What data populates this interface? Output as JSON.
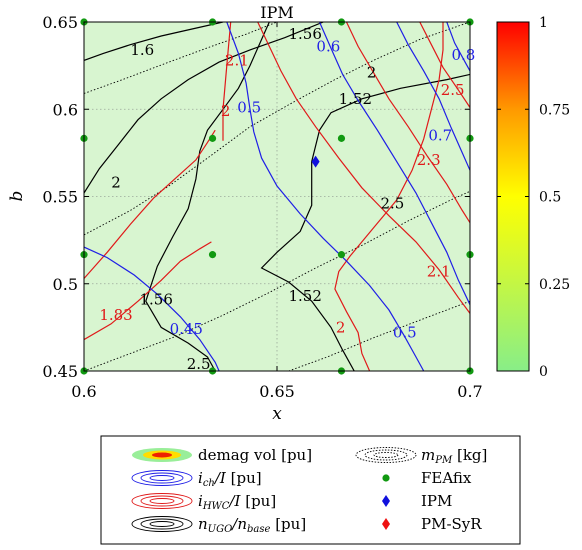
{
  "chart_data": {
    "type": "contour",
    "title": "IPM",
    "xlabel": "x",
    "ylabel": "b",
    "xlim": [
      0.6,
      0.7
    ],
    "ylim": [
      0.45,
      0.65
    ],
    "xticks": [
      "0.6",
      "0.65",
      "0.7"
    ],
    "yticks": [
      "0.45",
      "0.5",
      "0.55",
      "0.6",
      "0.65"
    ],
    "grid": true,
    "background_color": "#d8f5d0",
    "colorbar": {
      "min": 0,
      "max": 1,
      "ticks": [
        "0",
        "0.25",
        "0.5",
        "0.75",
        "1"
      ],
      "colors": [
        "#88ee88",
        "#ffff00",
        "#ff9900",
        "#ff0000"
      ]
    },
    "feafix_points": [
      {
        "x": 0.6,
        "y": 0.45
      },
      {
        "x": 0.6333,
        "y": 0.45
      },
      {
        "x": 0.6667,
        "y": 0.45
      },
      {
        "x": 0.7,
        "y": 0.45
      },
      {
        "x": 0.6,
        "y": 0.5167
      },
      {
        "x": 0.6333,
        "y": 0.5167
      },
      {
        "x": 0.6667,
        "y": 0.5167
      },
      {
        "x": 0.7,
        "y": 0.5167
      },
      {
        "x": 0.6,
        "y": 0.5833
      },
      {
        "x": 0.6333,
        "y": 0.5833
      },
      {
        "x": 0.6667,
        "y": 0.5833
      },
      {
        "x": 0.7,
        "y": 0.5833
      },
      {
        "x": 0.6,
        "y": 0.65
      },
      {
        "x": 0.6333,
        "y": 0.65
      },
      {
        "x": 0.6667,
        "y": 0.65
      },
      {
        "x": 0.7,
        "y": 0.65
      }
    ],
    "ipm_point": {
      "x": 0.66,
      "y": 0.57
    },
    "contours": {
      "n_ugo": [
        {
          "level": "1.6",
          "points": [
            [
              0.6,
              0.628
            ],
            [
              0.605,
              0.632
            ],
            [
              0.612,
              0.637
            ],
            [
              0.62,
              0.642
            ],
            [
              0.628,
              0.646
            ],
            [
              0.636,
              0.65
            ]
          ]
        },
        {
          "level": "1.56",
          "points": [
            [
              0.6,
              0.552
            ],
            [
              0.604,
              0.566
            ],
            [
              0.609,
              0.58
            ],
            [
              0.614,
              0.594
            ],
            [
              0.62,
              0.606
            ],
            [
              0.627,
              0.617
            ],
            [
              0.635,
              0.627
            ],
            [
              0.643,
              0.634
            ],
            [
              0.652,
              0.641
            ],
            [
              0.662,
              0.65
            ]
          ]
        },
        {
          "level": "1.56",
          "points": [
            [
              0.634,
              0.45
            ],
            [
              0.632,
              0.458
            ],
            [
              0.627,
              0.466
            ],
            [
              0.62,
              0.475
            ],
            [
              0.616,
              0.49
            ],
            [
              0.619,
              0.51
            ],
            [
              0.623,
              0.527
            ],
            [
              0.627,
              0.543
            ],
            [
              0.629,
              0.56
            ],
            [
              0.63,
              0.576
            ],
            [
              0.632,
              0.588
            ],
            [
              0.636,
              0.6
            ],
            [
              0.64,
              0.612
            ],
            [
              0.643,
              0.625
            ],
            [
              0.646,
              0.64
            ],
            [
              0.648,
              0.65
            ]
          ]
        },
        {
          "level": "1.52",
          "points": [
            [
              0.67,
              0.45
            ],
            [
              0.667,
              0.462
            ],
            [
              0.664,
              0.475
            ],
            [
              0.659,
              0.49
            ],
            [
              0.653,
              0.501
            ],
            [
              0.646,
              0.509
            ],
            [
              0.65,
              0.518
            ],
            [
              0.656,
              0.53
            ],
            [
              0.659,
              0.545
            ],
            [
              0.659,
              0.57
            ],
            [
              0.661,
              0.588
            ],
            [
              0.664,
              0.598
            ],
            [
              0.672,
              0.606
            ],
            [
              0.682,
              0.612
            ],
            [
              0.694,
              0.617
            ],
            [
              0.7,
              0.62
            ]
          ]
        }
      ],
      "i_ch": [
        {
          "level": "0.45",
          "points": [
            [
              0.6,
              0.521
            ],
            [
              0.606,
              0.515
            ],
            [
              0.613,
              0.505
            ],
            [
              0.619,
              0.494
            ],
            [
              0.625,
              0.481
            ],
            [
              0.63,
              0.468
            ],
            [
              0.634,
              0.455
            ],
            [
              0.635,
              0.45
            ]
          ]
        },
        {
          "level": "0.5",
          "points": [
            [
              0.637,
              0.65
            ],
            [
              0.64,
              0.632
            ],
            [
              0.642,
              0.615
            ],
            [
              0.643,
              0.6
            ],
            [
              0.644,
              0.587
            ],
            [
              0.646,
              0.572
            ],
            [
              0.65,
              0.556
            ],
            [
              0.656,
              0.54
            ],
            [
              0.662,
              0.526
            ],
            [
              0.668,
              0.513
            ],
            [
              0.674,
              0.499
            ],
            [
              0.679,
              0.485
            ],
            [
              0.683,
              0.47
            ],
            [
              0.686,
              0.458
            ],
            [
              0.688,
              0.45
            ]
          ]
        },
        {
          "level": "0.6",
          "points": [
            [
              0.661,
              0.65
            ],
            [
              0.664,
              0.635
            ],
            [
              0.667,
              0.62
            ],
            [
              0.671,
              0.605
            ],
            [
              0.676,
              0.588
            ],
            [
              0.681,
              0.57
            ],
            [
              0.686,
              0.552
            ],
            [
              0.69,
              0.535
            ],
            [
              0.694,
              0.518
            ],
            [
              0.697,
              0.502
            ],
            [
              0.7,
              0.488
            ]
          ]
        },
        {
          "level": "0.7",
          "points": [
            [
              0.681,
              0.65
            ],
            [
              0.684,
              0.637
            ],
            [
              0.688,
              0.622
            ],
            [
              0.692,
              0.606
            ],
            [
              0.695,
              0.59
            ],
            [
              0.698,
              0.575
            ],
            [
              0.7,
              0.565
            ]
          ]
        },
        {
          "level": "0.8",
          "points": [
            [
              0.694,
              0.65
            ],
            [
              0.696,
              0.638
            ],
            [
              0.699,
              0.626
            ],
            [
              0.7,
              0.622
            ]
          ]
        }
      ],
      "i_hwc": [
        {
          "level": "1.83",
          "points": [
            [
              0.6,
              0.468
            ],
            [
              0.607,
              0.477
            ],
            [
              0.614,
              0.49
            ],
            [
              0.62,
              0.502
            ],
            [
              0.625,
              0.513
            ],
            [
              0.63,
              0.52
            ],
            [
              0.633,
              0.524
            ]
          ]
        },
        {
          "level": "2",
          "points": [
            [
              0.6,
              0.503
            ],
            [
              0.606,
              0.518
            ],
            [
              0.612,
              0.534
            ],
            [
              0.618,
              0.549
            ],
            [
              0.624,
              0.561
            ],
            [
              0.629,
              0.571
            ],
            [
              0.632,
              0.581
            ],
            [
              0.634,
              0.588
            ]
          ]
        },
        {
          "level": "2",
          "points": [
            [
              0.674,
              0.45
            ],
            [
              0.672,
              0.46
            ],
            [
              0.671,
              0.472
            ],
            [
              0.668,
              0.484
            ],
            [
              0.665,
              0.497
            ],
            [
              0.666,
              0.507
            ],
            [
              0.669,
              0.516
            ],
            [
              0.675,
              0.532
            ],
            [
              0.681,
              0.548
            ],
            [
              0.685,
              0.565
            ],
            [
              0.688,
              0.583
            ],
            [
              0.69,
              0.6
            ],
            [
              0.692,
              0.617
            ],
            [
              0.693,
              0.634
            ],
            [
              0.693,
              0.65
            ]
          ]
        },
        {
          "level": "2.1",
          "points": [
            [
              0.638,
              0.65
            ],
            [
              0.637,
              0.625
            ],
            [
              0.636,
              0.6
            ],
            [
              0.636,
              0.582
            ]
          ]
        },
        {
          "level": "2.1",
          "points": [
            [
              0.645,
              0.65
            ],
            [
              0.648,
              0.636
            ],
            [
              0.651,
              0.622
            ],
            [
              0.655,
              0.606
            ],
            [
              0.66,
              0.59
            ],
            [
              0.666,
              0.572
            ],
            [
              0.672,
              0.555
            ],
            [
              0.679,
              0.539
            ],
            [
              0.686,
              0.524
            ],
            [
              0.692,
              0.508
            ],
            [
              0.697,
              0.492
            ],
            [
              0.7,
              0.483
            ]
          ]
        },
        {
          "level": "2.3",
          "points": [
            [
              0.668,
              0.65
            ],
            [
              0.671,
              0.636
            ],
            [
              0.675,
              0.621
            ],
            [
              0.679,
              0.606
            ],
            [
              0.684,
              0.59
            ],
            [
              0.689,
              0.573
            ],
            [
              0.694,
              0.557
            ],
            [
              0.698,
              0.542
            ],
            [
              0.7,
              0.535
            ]
          ]
        },
        {
          "level": "2.5",
          "points": [
            [
              0.687,
              0.65
            ],
            [
              0.69,
              0.637
            ],
            [
              0.693,
              0.624
            ],
            [
              0.697,
              0.611
            ],
            [
              0.7,
              0.601
            ]
          ]
        }
      ],
      "m_pm": [
        {
          "level": "2",
          "points": [
            [
              0.6,
              0.528
            ],
            [
              0.612,
              0.542
            ],
            [
              0.622,
              0.556
            ],
            [
              0.632,
              0.572
            ],
            [
              0.643,
              0.59
            ],
            [
              0.655,
              0.605
            ],
            [
              0.665,
              0.617
            ],
            [
              0.675,
              0.628
            ],
            [
              0.687,
              0.64
            ],
            [
              0.7,
              0.65
            ]
          ]
        },
        {
          "level": "2",
          "points": [
            [
              0.6,
              0.609
            ],
            [
              0.61,
              0.617
            ],
            [
              0.622,
              0.627
            ],
            [
              0.633,
              0.636
            ],
            [
              0.642,
              0.643
            ],
            [
              0.65,
              0.65
            ]
          ]
        },
        {
          "level": "2.5",
          "points": [
            [
              0.6,
              0.45
            ],
            [
              0.612,
              0.46
            ],
            [
              0.624,
              0.47
            ],
            [
              0.636,
              0.482
            ],
            [
              0.648,
              0.495
            ],
            [
              0.66,
              0.509
            ],
            [
              0.672,
              0.522
            ],
            [
              0.684,
              0.536
            ],
            [
              0.695,
              0.548
            ],
            [
              0.7,
              0.553
            ]
          ]
        },
        {
          "level": "2.5",
          "points": [
            [
              0.653,
              0.45
            ],
            [
              0.663,
              0.458
            ],
            [
              0.675,
              0.469
            ],
            [
              0.688,
              0.48
            ],
            [
              0.7,
              0.49
            ]
          ]
        }
      ]
    },
    "contour_labels": [
      {
        "text": "1.6",
        "x": 0.6151,
        "y": 0.634,
        "color": "black"
      },
      {
        "text": "1.56",
        "x": 0.6573,
        "y": 0.643,
        "color": "black"
      },
      {
        "text": "1.52",
        "x": 0.6703,
        "y": 0.606,
        "color": "black"
      },
      {
        "text": "1.56",
        "x": 0.6187,
        "y": 0.491,
        "color": "black"
      },
      {
        "text": "1.52",
        "x": 0.6573,
        "y": 0.493,
        "color": "black"
      },
      {
        "text": "2",
        "x": 0.6745,
        "y": 0.621,
        "color": "black"
      },
      {
        "text": "2",
        "x": 0.6083,
        "y": 0.558,
        "color": "black"
      },
      {
        "text": "2.5",
        "x": 0.6799,
        "y": 0.546,
        "color": "black"
      },
      {
        "text": "2.5",
        "x": 0.6297,
        "y": 0.454,
        "color": "black"
      },
      {
        "text": "0.5",
        "x": 0.6428,
        "y": 0.601,
        "color": "blue"
      },
      {
        "text": "0.6",
        "x": 0.6633,
        "y": 0.636,
        "color": "blue"
      },
      {
        "text": "0.7",
        "x": 0.6923,
        "y": 0.585,
        "color": "blue"
      },
      {
        "text": "0.8",
        "x": 0.6983,
        "y": 0.631,
        "color": "blue"
      },
      {
        "text": "0.45",
        "x": 0.6265,
        "y": 0.474,
        "color": "blue"
      },
      {
        "text": "0.5",
        "x": 0.6831,
        "y": 0.472,
        "color": "blue"
      },
      {
        "text": "2",
        "x": 0.6367,
        "y": 0.599,
        "color": "red"
      },
      {
        "text": "2.1",
        "x": 0.6396,
        "y": 0.628,
        "color": "red"
      },
      {
        "text": "2.3",
        "x": 0.6893,
        "y": 0.571,
        "color": "red"
      },
      {
        "text": "2.5",
        "x": 0.6955,
        "y": 0.611,
        "color": "red"
      },
      {
        "text": "1.83",
        "x": 0.6083,
        "y": 0.482,
        "color": "red"
      },
      {
        "text": "2.1",
        "x": 0.6919,
        "y": 0.507,
        "color": "red"
      },
      {
        "text": "2",
        "x": 0.6665,
        "y": 0.475,
        "color": "red"
      }
    ],
    "legend": {
      "placement": "bottom",
      "entries": [
        {
          "id": "demag",
          "html": "demag vol [pu]"
        },
        {
          "id": "mpm",
          "html": "<tspan font-style='italic'>m</tspan><tspan font-size='10' dy='3' font-style='italic'>PM</tspan><tspan dy='-3'> [kg]</tspan>"
        },
        {
          "id": "ich",
          "html": "<tspan font-style='italic'>i</tspan><tspan font-size='10' dy='3' font-style='italic'>ch</tspan><tspan dy='-3' font-style='italic'>/I</tspan><tspan> [pu]</tspan>"
        },
        {
          "id": "feafix",
          "html": "FEAfix"
        },
        {
          "id": "ihwc",
          "html": "<tspan font-style='italic'>i</tspan><tspan font-size='10' dy='3' font-style='italic'>HWC</tspan><tspan dy='-3' font-style='italic'>/I</tspan><tspan> [pu]</tspan>"
        },
        {
          "id": "ipm",
          "html": "IPM"
        },
        {
          "id": "nugo",
          "html": "<tspan font-style='italic'>n</tspan><tspan font-size='10' dy='3' font-style='italic'>UGO</tspan><tspan dy='-3' font-style='italic'>/n</tspan><tspan font-size='10' dy='3' font-style='italic'>base</tspan><tspan dy='-3'> [pu]</tspan>"
        },
        {
          "id": "pmsyr",
          "html": "PM-SyR"
        }
      ]
    },
    "colors": {
      "n_ugo": "#000000",
      "i_ch": "#1f1fe6",
      "i_hwc": "#e01a1a",
      "m_pm": "#000000",
      "feafix": "#119911",
      "ipm": "#1010dd",
      "pmsyr": "#ee1111"
    }
  }
}
